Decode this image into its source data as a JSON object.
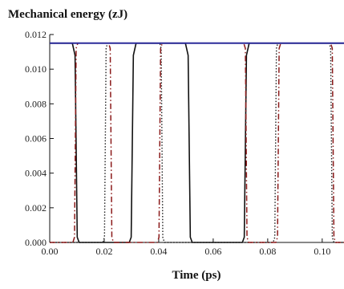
{
  "chart_data": {
    "type": "line",
    "title": "Mechanical energy (zJ)",
    "xlabel": "Time (ps)",
    "ylabel": "",
    "xlim": [
      0.0,
      0.108
    ],
    "ylim": [
      0.0,
      0.012
    ],
    "xticks": [
      0.0,
      0.02,
      0.04,
      0.06,
      0.08,
      0.1
    ],
    "xtick_labels": [
      "0.00",
      "0.02",
      "0.04",
      "0.06",
      "0.08",
      "0.10"
    ],
    "yticks": [
      0.0,
      0.002,
      0.004,
      0.006,
      0.008,
      0.01,
      0.012
    ],
    "ytick_labels": [
      "0.000",
      "0.002",
      "0.004",
      "0.006",
      "0.008",
      "0.010",
      "0.012"
    ],
    "grid": false,
    "series": [
      {
        "style": "solid",
        "color": "#111111",
        "x": [
          0.0,
          0.0083,
          0.0093,
          0.0101,
          0.0108,
          0.0292,
          0.0299,
          0.0307,
          0.0317,
          0.0498,
          0.0508,
          0.0516,
          0.0523,
          0.0707,
          0.0714,
          0.0722,
          0.0732,
          0.108
        ],
        "y": [
          0.0115,
          0.0115,
          0.0108,
          0.0003,
          0.0,
          0.0,
          0.0003,
          0.0108,
          0.0115,
          0.0115,
          0.0108,
          0.0003,
          0.0,
          0.0,
          0.0003,
          0.0108,
          0.0115,
          0.0115
        ]
      },
      {
        "style": "dotted",
        "color": "#222222",
        "x": [
          0.0,
          0.0195,
          0.0201,
          0.0207,
          0.0212,
          0.0404,
          0.0409,
          0.0415,
          0.0421,
          0.082,
          0.0826,
          0.0832,
          0.0837,
          0.1026,
          0.1031,
          0.1037,
          0.1043,
          0.108
        ],
        "y": [
          0.0,
          0.0,
          0.0003,
          0.0112,
          0.0115,
          0.0115,
          0.0112,
          0.0003,
          0.0,
          0.0,
          0.0003,
          0.0112,
          0.0115,
          0.0115,
          0.0112,
          0.0003,
          0.0,
          0.0
        ]
      },
      {
        "style": "dash-dot",
        "color": "#8b1a1a",
        "x": [
          0.0,
          0.0085,
          0.0091,
          0.0097,
          0.0103,
          0.0216,
          0.0222,
          0.0228,
          0.0234,
          0.0395,
          0.0401,
          0.0407,
          0.0413,
          0.0712,
          0.0718,
          0.0724,
          0.073,
          0.083,
          0.0836,
          0.0842,
          0.0848,
          0.1031,
          0.1037,
          0.1043,
          0.1049,
          0.108
        ],
        "y": [
          0.0,
          0.0,
          0.0003,
          0.0112,
          0.0115,
          0.0115,
          0.0112,
          0.0003,
          0.0,
          0.0,
          0.0003,
          0.0112,
          0.0115,
          0.0115,
          0.0112,
          0.0003,
          0.0,
          0.0,
          0.0003,
          0.0112,
          0.0115,
          0.0115,
          0.0112,
          0.0003,
          0.0,
          0.0
        ]
      },
      {
        "style": "solid",
        "color": "#2b2b9a",
        "x": [
          0.0,
          0.108
        ],
        "y": [
          0.0115,
          0.0115
        ]
      }
    ]
  }
}
